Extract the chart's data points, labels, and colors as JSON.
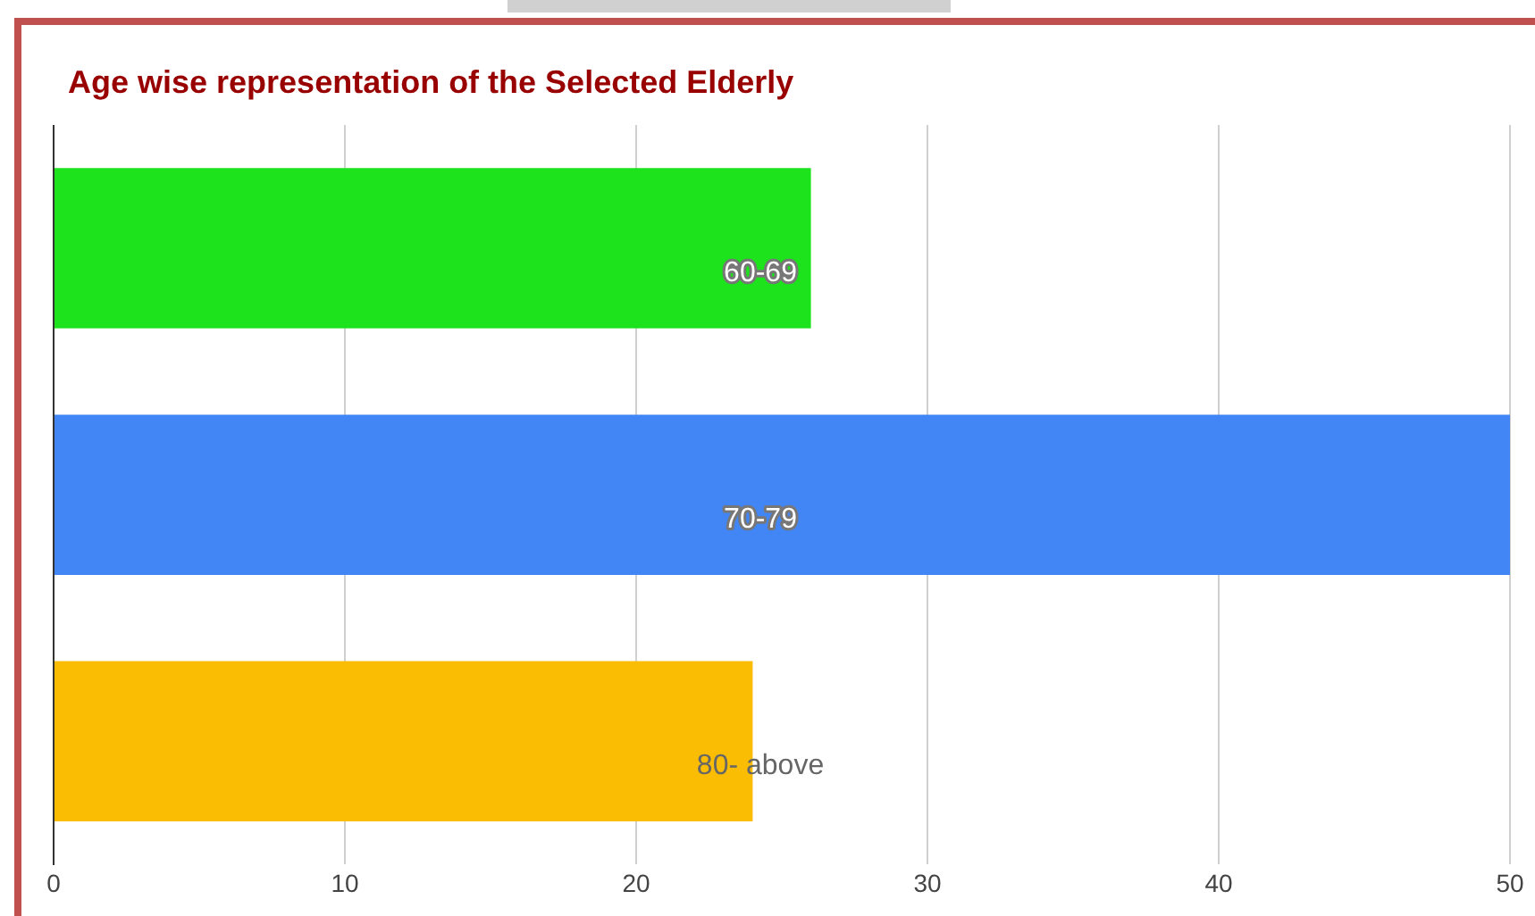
{
  "chart_data": {
    "type": "bar",
    "orientation": "horizontal",
    "title": "Age wise representation of the Selected Elderly",
    "categories": [
      "60-69",
      "70-79",
      "80- above"
    ],
    "values": [
      26,
      50,
      24
    ],
    "colors": [
      "#1ce31c",
      "#4285f4",
      "#fbbc04"
    ],
    "xlim": [
      0,
      50
    ],
    "xticks": [
      0,
      10,
      20,
      30,
      40,
      50
    ],
    "grid": "x",
    "legend": false
  }
}
